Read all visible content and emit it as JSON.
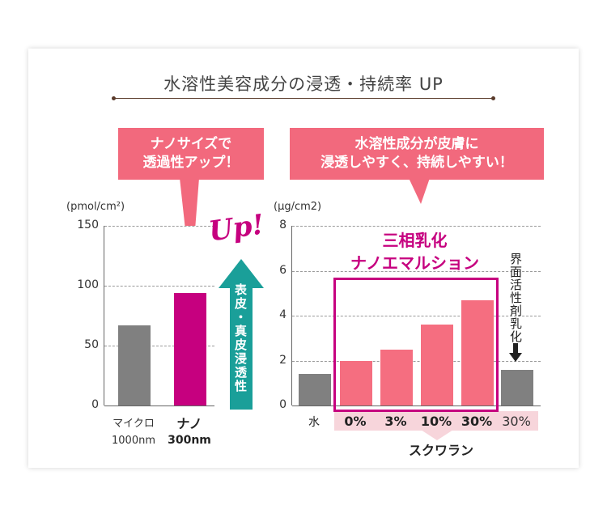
{
  "title": "水溶性美容成分の浸透・持続率 UP",
  "callouts": {
    "left": [
      "ナノサイズで",
      "透過性アップ！"
    ],
    "right": [
      "水溶性成分が皮膚に",
      "浸透しやすく、持続しやすい！"
    ]
  },
  "up_text": "Up!",
  "penetration_label": "表皮・真皮浸透性",
  "box_label": [
    "三相乳化",
    "ナノエマルション"
  ],
  "surfactant_label": "界面活性剤乳化",
  "squalane_label": "スクワラン",
  "colors": {
    "gray": "#808080",
    "magenta": "#c6007f",
    "pink": "#f56e80",
    "teal": "#1a9f99",
    "callout": "#f2697d"
  },
  "chart_data": [
    {
      "type": "bar",
      "ylabel": "(pmol/cm²)",
      "ylim": [
        0,
        150
      ],
      "yticks": [
        "150",
        "100",
        "50",
        "0"
      ],
      "categories": [
        "マイクロ",
        "ナノ"
      ],
      "sublabels": [
        "1000nm",
        "300nm"
      ],
      "values": [
        67,
        94
      ]
    },
    {
      "type": "bar",
      "ylabel": "(μg/cm2)",
      "ylim": [
        0,
        8
      ],
      "yticks": [
        "8",
        "6",
        "4",
        "2",
        "0"
      ],
      "categories": [
        "水",
        "0%",
        "3%",
        "10%",
        "30%",
        "30%"
      ],
      "values": [
        1.4,
        2.0,
        2.5,
        3.6,
        4.7,
        1.6
      ]
    }
  ]
}
